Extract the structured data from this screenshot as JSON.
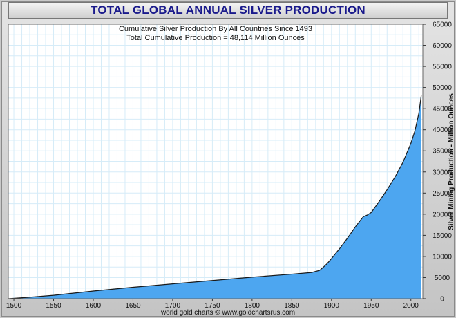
{
  "header": {
    "title": "TOTAL GLOBAL ANNUAL SILVER PRODUCTION"
  },
  "footer": {
    "credit": "world gold charts © www.goldchartsrus.com"
  },
  "chart_data": {
    "type": "area",
    "subtitle": "Cumulative Silver Production By All Countries Since 1493",
    "annotation": "Total Cumulative Production = 48,114 Million Ounces",
    "xlabel": "",
    "ylabel": "Silver Mining Production - Million Ounces",
    "xlim": [
      1493,
      2015
    ],
    "ylim": [
      0,
      65000
    ],
    "x_ticks": [
      1500,
      1550,
      1600,
      1650,
      1700,
      1750,
      1800,
      1850,
      1900,
      1950,
      2000
    ],
    "y_ticks": [
      0,
      5000,
      10000,
      15000,
      20000,
      25000,
      30000,
      35000,
      40000,
      45000,
      50000,
      55000,
      60000,
      65000
    ],
    "y_axis_side": "right",
    "grid": true,
    "colors": {
      "fill": "#4da6f0",
      "line": "#1a1a1a",
      "grid": "#d6ecf8"
    },
    "series": [
      {
        "x": [
          1493,
          1520,
          1550,
          1600,
          1650,
          1700,
          1750,
          1800,
          1850,
          1875,
          1885,
          1890,
          1895,
          1900,
          1910,
          1920,
          1930,
          1940,
          1945,
          1950,
          1960,
          1970,
          1980,
          1990,
          2000,
          2005,
          2010,
          2013
        ],
        "y": [
          0,
          350,
          800,
          1800,
          2700,
          3500,
          4300,
          5100,
          5800,
          6200,
          6700,
          7500,
          8400,
          9500,
          11800,
          14300,
          17000,
          19400,
          19800,
          20400,
          23000,
          25800,
          28800,
          32300,
          36800,
          39700,
          43900,
          48100
        ]
      }
    ]
  }
}
